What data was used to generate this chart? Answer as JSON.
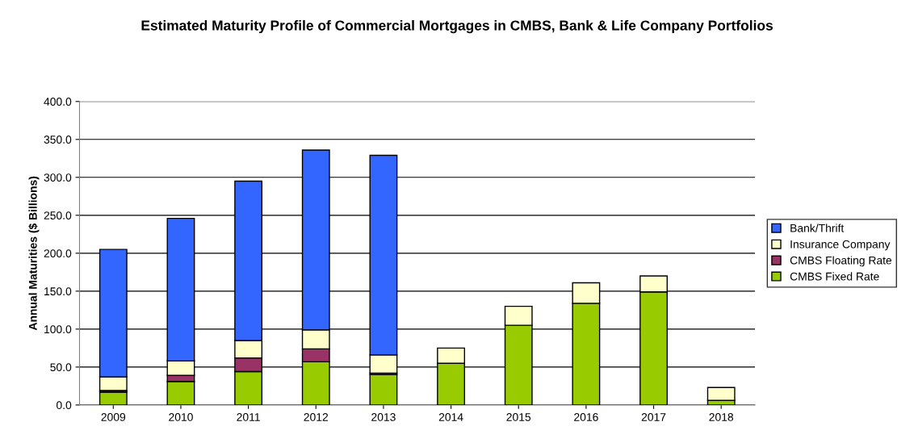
{
  "chart_data": {
    "type": "bar",
    "title": "Estimated Maturity Profile of Commercial Mortgages in CMBS, Bank & Life Company Portfolios",
    "ylabel": "Annual Maturities ($ Billions)",
    "categories": [
      "2009",
      "2010",
      "2011",
      "2012",
      "2013",
      "2014",
      "2015",
      "2016",
      "2017",
      "2018"
    ],
    "stacked": true,
    "series": [
      {
        "name": "CMBS Fixed Rate",
        "color": "#99cc00",
        "values": [
          17,
          31,
          44,
          57,
          40,
          55,
          105,
          134,
          149,
          6
        ]
      },
      {
        "name": "CMBS Floating Rate",
        "color": "#993366",
        "values": [
          2,
          8,
          18,
          17,
          2,
          null,
          null,
          null,
          null,
          null
        ]
      },
      {
        "name": "Insurance Company",
        "color": "#ffffcc",
        "values": [
          18,
          19,
          23,
          25,
          24,
          20,
          25,
          27,
          21,
          17
        ]
      },
      {
        "name": "Bank/Thrift",
        "color": "#3366ff",
        "values": [
          168,
          188,
          210,
          237,
          263,
          null,
          null,
          null,
          null,
          null
        ]
      }
    ],
    "ylim": [
      0,
      400
    ],
    "yticks": [
      {
        "value": 0,
        "label": "0.0"
      },
      {
        "value": 50,
        "label": "50.0"
      },
      {
        "value": 100,
        "label": "100.0"
      },
      {
        "value": 150,
        "label": "150.0"
      },
      {
        "value": 200,
        "label": "200.0"
      },
      {
        "value": 250,
        "label": "250.0"
      },
      {
        "value": 300,
        "label": "300.0"
      },
      {
        "value": 350,
        "label": "350.0"
      },
      {
        "value": 400,
        "label": "400.0"
      }
    ],
    "grid": "y",
    "legend": "right"
  }
}
